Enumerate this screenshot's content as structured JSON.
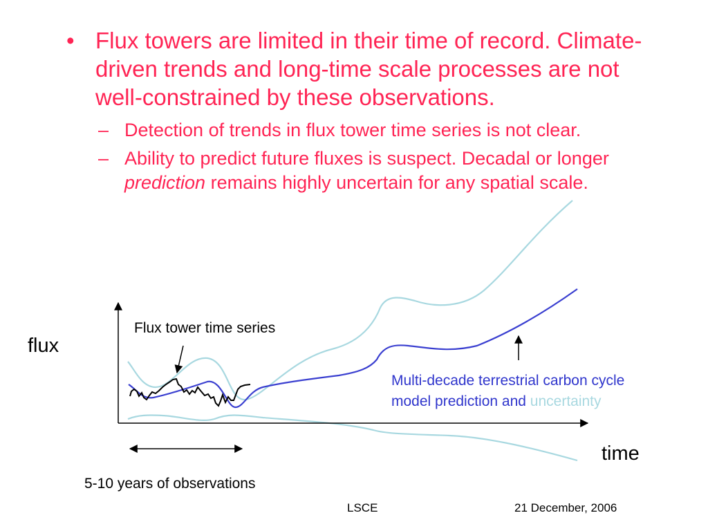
{
  "slide": {
    "bullet_main": "Flux towers are limited in their time of record. Climate-driven trends and long-time scale processes are not well-constrained by these observations.",
    "sub_bullet_1": "Detection of trends in flux tower time series is not clear.",
    "sub_bullet_2_before": "Ability to predict future fluxes is suspect.  Decadal or longer ",
    "sub_bullet_2_italic": "prediction",
    "sub_bullet_2_after": " remains highly uncertain for any spatial scale.",
    "bullet_mark": "•",
    "dash_mark": "–"
  },
  "diagram": {
    "y_axis_label": "flux",
    "x_axis_label": "time",
    "tower_series_label": "Flux tower time series",
    "observation_span_label": "5-10 years of observations",
    "model_label_line1": "Multi-decade terrestrial carbon cycle",
    "model_label_line2": "model prediction and ",
    "model_label_uncertainty": "uncertainty",
    "colors": {
      "text": "#ff2454",
      "model_line": "#3a3fd0",
      "uncertainty": "#a8d8e0",
      "tower_series": "#000000"
    }
  },
  "footer": {
    "left": "LSCE",
    "right": "21 December, 2006"
  }
}
